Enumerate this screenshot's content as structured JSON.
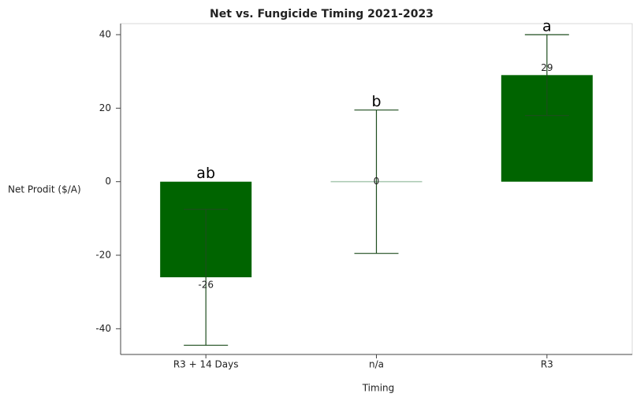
{
  "chart_data": {
    "type": "bar",
    "title": "Net vs. Fungicide Timing 2021-2023",
    "x_label": "Timing",
    "y_label": "Net Prodit ($/A)",
    "categories": [
      "R3 + 14 Days",
      "n/a",
      "R3"
    ],
    "values": [
      -26,
      0,
      29
    ],
    "errors": [
      18.5,
      19.5,
      11
    ],
    "annotations": [
      "ab",
      "b",
      "a"
    ],
    "color": "#006400",
    "error_color": "#1e4d1e",
    "ylim": [
      -47,
      43
    ],
    "yticks": [
      -40,
      -20,
      0,
      20,
      40
    ],
    "grid": false
  }
}
